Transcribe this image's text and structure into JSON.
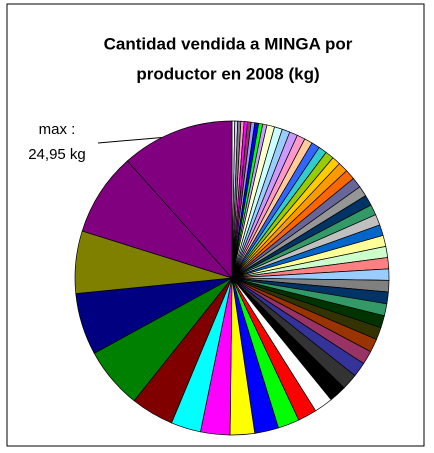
{
  "chart_data": {
    "type": "pie",
    "title": [
      "Cantidad vendida a MINGA por",
      "productor en 2008 (kg)"
    ],
    "annotation": [
      "max :",
      "24,95 kg"
    ],
    "values": [
      0.6,
      0.65,
      0.7,
      0.7,
      0.75,
      0.8,
      0.8,
      0.85,
      0.9,
      0.95,
      1.7,
      1.75,
      1.75,
      1.8,
      1.8,
      1.8,
      1.85,
      1.85,
      1.9,
      1.9,
      2.2,
      2.25,
      2.3,
      2.3,
      2.35,
      2.35,
      2.4,
      2.4,
      2.45,
      2.45,
      2.5,
      2.5,
      2.55,
      2.6,
      2.65,
      2.7,
      2.75,
      2.95,
      3.0,
      3.25,
      3.55,
      3.85,
      4.15,
      4.2,
      4.75,
      5.3,
      5.4,
      6.5,
      6.6,
      9.5,
      13.6,
      13.7,
      13.8,
      18.4,
      24.95
    ],
    "colors": [
      "#FFFFFF",
      "#CCCCFF",
      "#808080",
      "#FF99CC",
      "#FF00FF",
      "#993366",
      "#9999FF",
      "#0000FF",
      "#00FF00",
      "#CC99FF",
      "#FFFFCC",
      "#CCFFFF",
      "#99CCFF",
      "#CC99FF",
      "#FF99CC",
      "#FFCC99",
      "#3366FF",
      "#33CCCC",
      "#99CC00",
      "#FFCC00",
      "#FF9900",
      "#FF6600",
      "#666699",
      "#969696",
      "#003366",
      "#339966",
      "#C0C0C0",
      "#0066CC",
      "#FFFF99",
      "#CCFFCC",
      "#FF8080",
      "#99CCFF",
      "#808080",
      "#003366",
      "#339966",
      "#003300",
      "#333300",
      "#993300",
      "#993366",
      "#333399",
      "#333333",
      "#000000",
      "#FFFFFF",
      "#FF0000",
      "#00FF00",
      "#0000FF",
      "#FFFF00",
      "#FF00FF",
      "#00FFFF",
      "#800000",
      "#008000",
      "#000080",
      "#808000",
      "#800080",
      "#800080"
    ]
  }
}
